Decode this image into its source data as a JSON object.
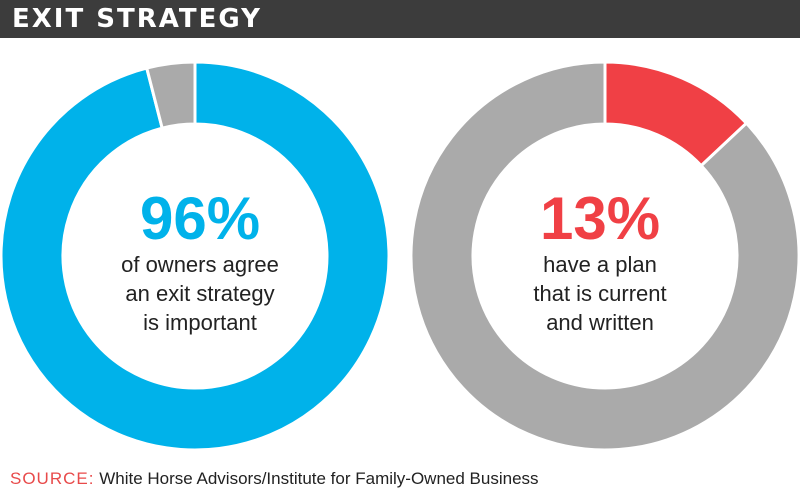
{
  "header": {
    "title": "EXIT STRATEGY"
  },
  "colors": {
    "blue": "#00b2ea",
    "gray": "#aaaaaa",
    "red": "#f04045",
    "header_bg": "#3c3c3c"
  },
  "chart_data": [
    {
      "type": "pie",
      "style": "donut",
      "slices": [
        {
          "label": "agree exit strategy is important",
          "value": 96,
          "color": "#00b2ea"
        },
        {
          "label": "other",
          "value": 4,
          "color": "#aaaaaa"
        }
      ],
      "center_value": "96%",
      "center_lines": [
        "of owners agree",
        "an exit strategy",
        "is important"
      ]
    },
    {
      "type": "pie",
      "style": "donut",
      "slices": [
        {
          "label": "have a plan that is current and written",
          "value": 13,
          "color": "#f04045"
        },
        {
          "label": "other",
          "value": 87,
          "color": "#aaaaaa"
        }
      ],
      "center_value": "13%",
      "center_lines": [
        "have a plan",
        "that is current",
        "and written"
      ]
    }
  ],
  "footer": {
    "source_label": "SOURCE:",
    "source_text": "White Horse Advisors/Institute for Family-Owned Business"
  }
}
